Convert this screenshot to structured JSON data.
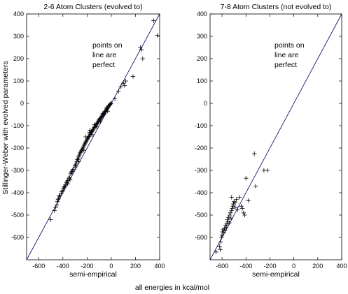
{
  "figure": {
    "ylabel": "Stillinger-Weber with evolved parameters",
    "footer": "all energies in kcal/mol"
  },
  "chart_data": [
    {
      "type": "scatter",
      "title": "2-6 Atom Clusters (evolved to)",
      "xlabel": "semi-empirical",
      "ylabel": "Stillinger-Weber with evolved parameters",
      "xlim": [
        -700,
        400
      ],
      "ylim": [
        -700,
        400
      ],
      "xticks": [
        -600,
        -400,
        -200,
        0,
        200,
        400
      ],
      "yticks": [
        -600,
        -500,
        -400,
        -300,
        -200,
        -100,
        0,
        100,
        200,
        300,
        400
      ],
      "annotation": [
        "points on",
        "line are",
        "perfect"
      ],
      "reference_line": {
        "x": [
          -700,
          400
        ],
        "y": [
          -700,
          400
        ]
      },
      "marker": "+",
      "grid": false,
      "points": [
        [
          -500,
          -520
        ],
        [
          -470,
          -480
        ],
        [
          -460,
          -465
        ],
        [
          -450,
          -455
        ],
        [
          -445,
          -440
        ],
        [
          -440,
          -430
        ],
        [
          -435,
          -425
        ],
        [
          -430,
          -415
        ],
        [
          -425,
          -412
        ],
        [
          -415,
          -405
        ],
        [
          -410,
          -395
        ],
        [
          -400,
          -390
        ],
        [
          -395,
          -380
        ],
        [
          -390,
          -375
        ],
        [
          -385,
          -372
        ],
        [
          -380,
          -365
        ],
        [
          -370,
          -355
        ],
        [
          -365,
          -350
        ],
        [
          -360,
          -345
        ],
        [
          -350,
          -335
        ],
        [
          -345,
          -330
        ],
        [
          -335,
          -315
        ],
        [
          -330,
          -310
        ],
        [
          -325,
          -305
        ],
        [
          -320,
          -300
        ],
        [
          -315,
          -295
        ],
        [
          -300,
          -285
        ],
        [
          -295,
          -275
        ],
        [
          -290,
          -268
        ],
        [
          -285,
          -260
        ],
        [
          -280,
          -252
        ],
        [
          -275,
          -248
        ],
        [
          -270,
          -240
        ],
        [
          -265,
          -232
        ],
        [
          -260,
          -226
        ],
        [
          -255,
          -220
        ],
        [
          -250,
          -215
        ],
        [
          -245,
          -210
        ],
        [
          -240,
          -205
        ],
        [
          -235,
          -200
        ],
        [
          -230,
          -195
        ],
        [
          -225,
          -188
        ],
        [
          -220,
          -182
        ],
        [
          -215,
          -178
        ],
        [
          -210,
          -172
        ],
        [
          -205,
          -168
        ],
        [
          -200,
          -162
        ],
        [
          -195,
          -158
        ],
        [
          -190,
          -152
        ],
        [
          -185,
          -148
        ],
        [
          -180,
          -143
        ],
        [
          -175,
          -138
        ],
        [
          -170,
          -134
        ],
        [
          -165,
          -130
        ],
        [
          -160,
          -126
        ],
        [
          -155,
          -121
        ],
        [
          -150,
          -118
        ],
        [
          -145,
          -113
        ],
        [
          -140,
          -108
        ],
        [
          -135,
          -104
        ],
        [
          -130,
          -100
        ],
        [
          -125,
          -96
        ],
        [
          -120,
          -92
        ],
        [
          -115,
          -88
        ],
        [
          -110,
          -84
        ],
        [
          -105,
          -80
        ],
        [
          -100,
          -76
        ],
        [
          -95,
          -72
        ],
        [
          -90,
          -68
        ],
        [
          -85,
          -64
        ],
        [
          -80,
          -60
        ],
        [
          -75,
          -56
        ],
        [
          -70,
          -52
        ],
        [
          -65,
          -48
        ],
        [
          -60,
          -44
        ],
        [
          -55,
          -40
        ],
        [
          -50,
          -36
        ],
        [
          -45,
          -32
        ],
        [
          -40,
          -28
        ],
        [
          -35,
          -24
        ],
        [
          -30,
          -20
        ],
        [
          -25,
          -16
        ],
        [
          -20,
          -12
        ],
        [
          -15,
          -8
        ],
        [
          -10,
          -5
        ],
        [
          -5,
          -2
        ],
        [
          0,
          2
        ],
        [
          -180,
          -130
        ],
        [
          -175,
          -120
        ],
        [
          -160,
          -140
        ],
        [
          -140,
          -95
        ],
        [
          -120,
          -105
        ],
        [
          -100,
          -70
        ],
        [
          -90,
          -80
        ],
        [
          -70,
          -45
        ],
        [
          -60,
          -52
        ],
        [
          -40,
          -20
        ],
        [
          -30,
          -35
        ],
        [
          -210,
          -150
        ],
        [
          -230,
          -210
        ],
        [
          -270,
          -260
        ],
        [
          -300,
          -280
        ],
        [
          -340,
          -340
        ],
        [
          -360,
          -360
        ],
        [
          30,
          20
        ],
        [
          60,
          55
        ],
        [
          80,
          75
        ],
        [
          100,
          90
        ],
        [
          110,
          80
        ],
        [
          120,
          100
        ],
        [
          180,
          120
        ],
        [
          240,
          250
        ],
        [
          250,
          240
        ],
        [
          260,
          200
        ],
        [
          350,
          370
        ],
        [
          380,
          305
        ]
      ]
    },
    {
      "type": "scatter",
      "title": "7-8 Atom Clusters (not evolved to)",
      "xlabel": "semi-empirical",
      "ylabel": "",
      "xlim": [
        -700,
        400
      ],
      "ylim": [
        -700,
        400
      ],
      "xticks": [
        -600,
        -400,
        -200,
        0,
        200,
        400
      ],
      "yticks": [
        -600,
        -500,
        -400,
        -300,
        -200,
        -100,
        0,
        100,
        200,
        300,
        400
      ],
      "annotation": [
        "points on",
        "line are",
        "perfect"
      ],
      "reference_line": {
        "x": [
          -700,
          400
        ],
        "y": [
          -700,
          400
        ]
      },
      "marker": "+",
      "grid": false,
      "points": [
        [
          -650,
          -665
        ],
        [
          -620,
          -640
        ],
        [
          -615,
          -655
        ],
        [
          -610,
          -620
        ],
        [
          -605,
          -600
        ],
        [
          -600,
          -590
        ],
        [
          -598,
          -575
        ],
        [
          -590,
          -565
        ],
        [
          -585,
          -580
        ],
        [
          -580,
          -560
        ],
        [
          -575,
          -570
        ],
        [
          -570,
          -545
        ],
        [
          -565,
          -555
        ],
        [
          -560,
          -540
        ],
        [
          -555,
          -520
        ],
        [
          -550,
          -530
        ],
        [
          -545,
          -510
        ],
        [
          -540,
          -535
        ],
        [
          -535,
          -500
        ],
        [
          -530,
          -490
        ],
        [
          -525,
          -515
        ],
        [
          -520,
          -480
        ],
        [
          -515,
          -470
        ],
        [
          -510,
          -460
        ],
        [
          -505,
          -450
        ],
        [
          -500,
          -440
        ],
        [
          -490,
          -465
        ],
        [
          -480,
          -430
        ],
        [
          -470,
          -475
        ],
        [
          -455,
          -420
        ],
        [
          -440,
          -460
        ],
        [
          -430,
          -470
        ],
        [
          -420,
          -490
        ],
        [
          -410,
          -500
        ],
        [
          -400,
          -335
        ],
        [
          -380,
          -435
        ],
        [
          -330,
          -225
        ],
        [
          -320,
          -370
        ],
        [
          -250,
          -300
        ],
        [
          -220,
          -300
        ],
        [
          -520,
          -420
        ],
        [
          -490,
          -445
        ]
      ]
    }
  ]
}
